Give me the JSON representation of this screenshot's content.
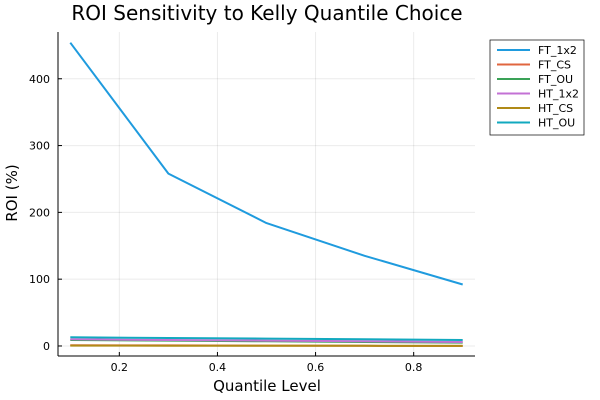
{
  "chart_data": {
    "type": "line",
    "title": "ROI Sensitivity to Kelly Quantile Choice",
    "xlabel": "Quantile Level",
    "ylabel": "ROI (%)",
    "xlim": [
      0.075,
      0.925
    ],
    "ylim": [
      -15,
      470
    ],
    "xticks": [
      0.2,
      0.4,
      0.6,
      0.8
    ],
    "xtick_labels": [
      "0.2",
      "0.4",
      "0.6",
      "0.8"
    ],
    "yticks": [
      0,
      100,
      200,
      300,
      400
    ],
    "ytick_labels": [
      "0",
      "100",
      "200",
      "300",
      "400"
    ],
    "grid": true,
    "legend_position": "top-right",
    "x": [
      0.1,
      0.3,
      0.5,
      0.7,
      0.9
    ],
    "series": [
      {
        "name": "FT_1x2",
        "color": "#1f9bde",
        "values": [
          454,
          258,
          184,
          135,
          92
        ]
      },
      {
        "name": "FT_CS",
        "color": "#e0663f",
        "values": [
          1,
          0.8,
          0.5,
          0.3,
          0.1
        ]
      },
      {
        "name": "FT_OU",
        "color": "#3aa257",
        "values": [
          9,
          8,
          7,
          6,
          5
        ]
      },
      {
        "name": "HT_1x2",
        "color": "#c371d4",
        "values": [
          10,
          9,
          8,
          7,
          6
        ]
      },
      {
        "name": "HT_CS",
        "color": "#b08a17",
        "values": [
          0.5,
          0.4,
          0.3,
          0.2,
          0.1
        ]
      },
      {
        "name": "HT_OU",
        "color": "#12a9bf",
        "values": [
          13,
          12,
          11,
          10,
          9
        ]
      }
    ]
  }
}
